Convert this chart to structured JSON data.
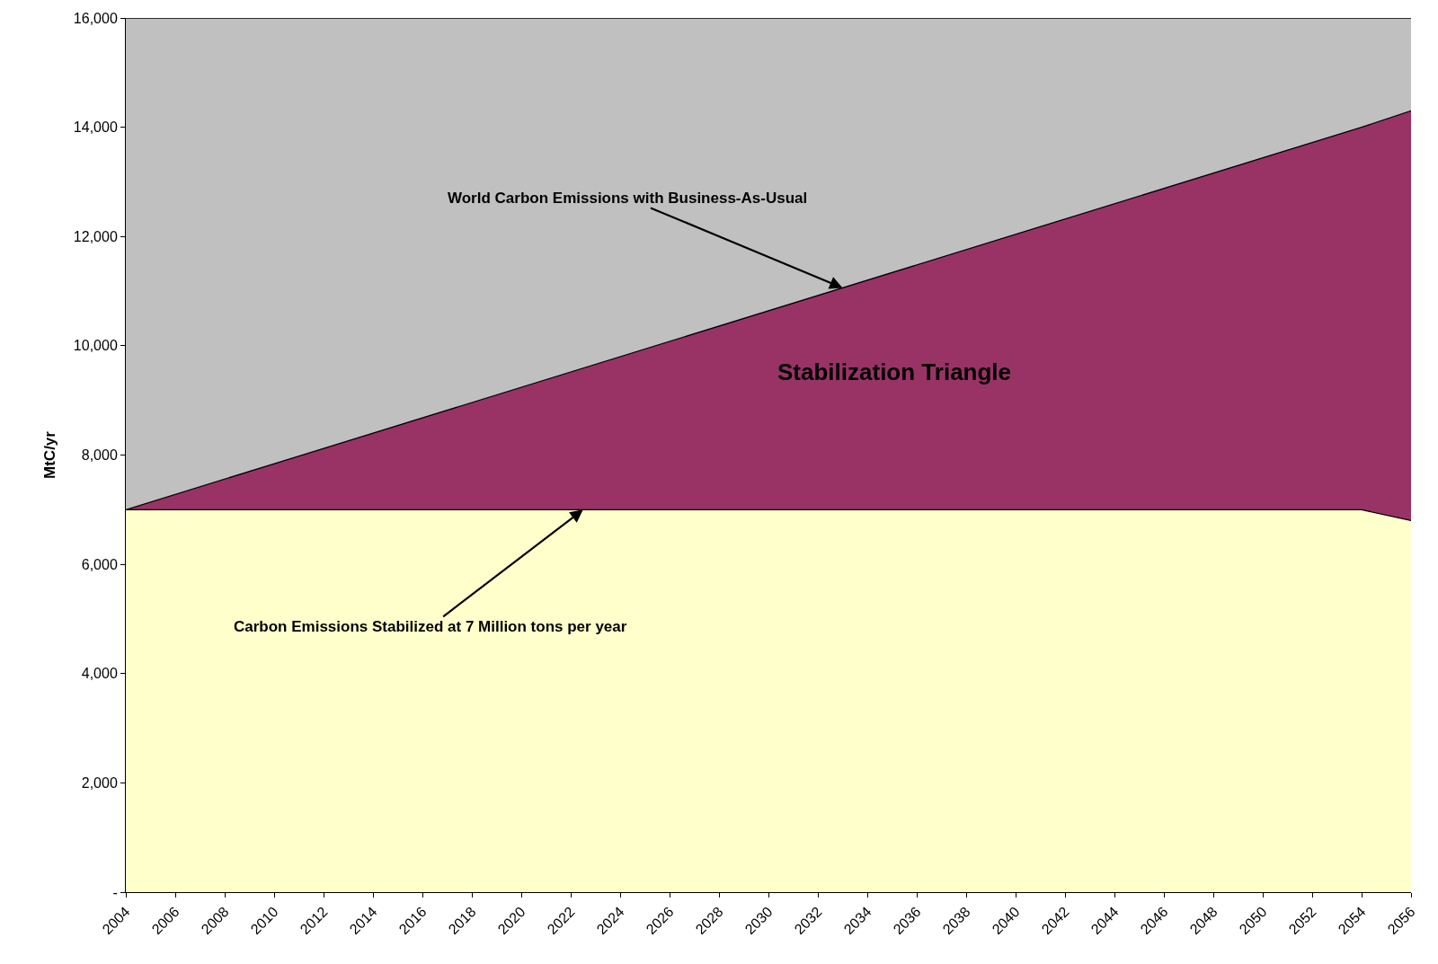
{
  "chart_data": {
    "type": "area",
    "stacked": true,
    "ylabel": "MtC/yr",
    "x": [
      2004,
      2054,
      2056
    ],
    "series": [
      {
        "color": "#ffffcc",
        "values": [
          7000,
          7000,
          6800
        ]
      },
      {
        "color": "#993366",
        "values": [
          0,
          7000,
          7500
        ]
      },
      {
        "color": "#c0c0c0",
        "values": [
          9000,
          2000,
          1700
        ]
      }
    ],
    "xlim": [
      2004,
      2056
    ],
    "xticks": [
      2004,
      2006,
      2008,
      2010,
      2012,
      2014,
      2016,
      2018,
      2020,
      2022,
      2024,
      2026,
      2028,
      2030,
      2032,
      2034,
      2036,
      2038,
      2040,
      2042,
      2044,
      2046,
      2048,
      2050,
      2052,
      2054,
      2056
    ],
    "ylim": [
      0,
      16000
    ],
    "yticks": [
      {
        "value": 0,
        "label": "-"
      },
      {
        "value": 2000,
        "label": "2,000"
      },
      {
        "value": 4000,
        "label": "4,000"
      },
      {
        "value": 6000,
        "label": "6,000"
      },
      {
        "value": 8000,
        "label": "8,000"
      },
      {
        "value": 10000,
        "label": "10,000"
      },
      {
        "value": 12000,
        "label": "12,000"
      },
      {
        "value": 14000,
        "label": "14,000"
      },
      {
        "value": 16000,
        "label": "16,000"
      }
    ],
    "grid": "y",
    "annotations": [
      {
        "text": "World Carbon Emissions with Business-As-Usual",
        "x": 2033,
        "y": 11060
      },
      {
        "text": "Carbon Emissions Stabilized at 7 Million tons per year",
        "x": 2022.5,
        "y": 7000
      },
      "Stabilization Triangle"
    ]
  }
}
